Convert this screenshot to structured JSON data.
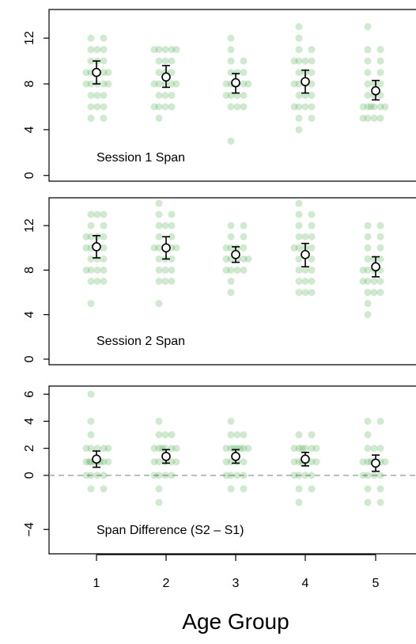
{
  "chart_data": {
    "type": "scatter",
    "xlabel": "Age Group",
    "x_ticks": [
      "1",
      "2",
      "3",
      "4",
      "5"
    ],
    "colors": {
      "points": "#2e9a2e",
      "mean_marker": "#000000",
      "zero_line": "#a6a6a6"
    },
    "panels": [
      {
        "title": "Session 1 Span",
        "ylim": [
          -0.5,
          14.5
        ],
        "y_ticks": [
          0,
          4,
          8,
          12
        ],
        "y_tick_labels": [
          "0",
          "4",
          "8",
          "12"
        ],
        "groups": [
          {
            "group": 1,
            "mean": 9.0,
            "lo": 8.0,
            "hi": 10.0,
            "values": [
              12,
              12,
              11,
              11,
              11,
              10,
              10,
              10,
              9,
              9,
              9,
              9,
              9,
              8,
              8,
              8,
              8,
              8,
              7,
              7,
              7,
              6,
              6,
              6,
              5,
              5
            ]
          },
          {
            "group": 2,
            "mean": 8.6,
            "lo": 7.7,
            "hi": 9.6,
            "values": [
              11,
              11,
              11,
              11,
              11,
              10,
              10,
              10,
              9,
              9,
              9,
              8,
              8,
              8,
              8,
              8,
              7,
              7,
              7,
              6,
              6,
              6,
              6,
              5
            ]
          },
          {
            "group": 3,
            "mean": 8.1,
            "lo": 7.2,
            "hi": 8.9,
            "values": [
              12,
              11,
              10,
              10,
              9,
              9,
              9,
              8,
              8,
              8,
              8,
              8,
              8,
              7,
              7,
              7,
              7,
              6,
              6,
              6,
              3
            ]
          },
          {
            "group": 4,
            "mean": 8.2,
            "lo": 7.2,
            "hi": 9.2,
            "values": [
              13,
              12,
              11,
              11,
              10,
              10,
              10,
              10,
              9,
              9,
              9,
              8,
              8,
              8,
              8,
              7,
              7,
              7,
              6,
              6,
              6,
              6,
              5,
              5,
              4
            ]
          },
          {
            "group": 5,
            "mean": 7.4,
            "lo": 6.6,
            "hi": 8.3,
            "values": [
              13,
              11,
              11,
              10,
              10,
              9,
              9,
              8,
              8,
              8,
              7,
              7,
              7,
              6,
              6,
              6,
              6,
              6,
              6,
              5,
              5,
              5,
              5
            ]
          }
        ]
      },
      {
        "title": "Session 2 Span",
        "ylim": [
          -0.5,
          14.5
        ],
        "y_ticks": [
          0,
          4,
          8,
          12
        ],
        "y_tick_labels": [
          "0",
          "4",
          "8",
          "12"
        ],
        "groups": [
          {
            "group": 1,
            "mean": 10.1,
            "lo": 9.1,
            "hi": 11.1,
            "values": [
              13,
              13,
              13,
              12,
              12,
              11,
              11,
              11,
              11,
              10,
              10,
              10,
              10,
              9,
              9,
              9,
              8,
              8,
              8,
              8,
              7,
              7,
              7,
              5
            ]
          },
          {
            "group": 2,
            "mean": 10.0,
            "lo": 9.0,
            "hi": 11.0,
            "values": [
              14,
              13,
              13,
              12,
              12,
              12,
              11,
              11,
              10,
              10,
              10,
              10,
              10,
              9,
              9,
              9,
              8,
              8,
              8,
              7,
              7,
              7,
              5
            ]
          },
          {
            "group": 3,
            "mean": 9.4,
            "lo": 8.7,
            "hi": 10.1,
            "values": [
              12,
              12,
              11,
              11,
              10,
              10,
              10,
              10,
              9,
              9,
              9,
              9,
              9,
              8,
              8,
              8,
              8,
              7,
              6
            ]
          },
          {
            "group": 4,
            "mean": 9.4,
            "lo": 8.3,
            "hi": 10.4,
            "values": [
              14,
              13,
              13,
              12,
              12,
              11,
              11,
              11,
              10,
              10,
              10,
              10,
              9,
              9,
              8,
              8,
              8,
              7,
              7,
              7,
              6,
              6,
              6
            ]
          },
          {
            "group": 5,
            "mean": 8.3,
            "lo": 7.4,
            "hi": 9.2,
            "values": [
              12,
              12,
              11,
              11,
              10,
              10,
              9,
              9,
              9,
              8,
              8,
              8,
              8,
              7,
              7,
              7,
              7,
              6,
              6,
              6,
              5,
              4
            ]
          }
        ]
      },
      {
        "title": "Span Difference (S2 – S1)",
        "ylim": [
          -5.8,
          6.6
        ],
        "y_ticks": [
          -4,
          0,
          2,
          4,
          6
        ],
        "y_tick_labels": [
          "−4",
          "0",
          "2",
          "4",
          "6"
        ],
        "zero_line": true,
        "groups": [
          {
            "group": 1,
            "mean": 1.2,
            "lo": 0.6,
            "hi": 1.8,
            "values": [
              6,
              4,
              3,
              2,
              2,
              2,
              2,
              2,
              1,
              1,
              1,
              1,
              1,
              1,
              1,
              1,
              0,
              0,
              0,
              0,
              -1,
              -1
            ]
          },
          {
            "group": 2,
            "mean": 1.4,
            "lo": 0.9,
            "hi": 1.9,
            "values": [
              4,
              3,
              3,
              3,
              2,
              2,
              2,
              2,
              2,
              2,
              1,
              1,
              1,
              1,
              1,
              0,
              0,
              0,
              0,
              -1,
              -2
            ]
          },
          {
            "group": 3,
            "mean": 1.4,
            "lo": 0.9,
            "hi": 1.9,
            "values": [
              4,
              3,
              3,
              3,
              2,
              2,
              2,
              2,
              2,
              2,
              2,
              1,
              1,
              1,
              1,
              0,
              0,
              0,
              0,
              -1,
              -1
            ]
          },
          {
            "group": 4,
            "mean": 1.2,
            "lo": 0.7,
            "hi": 1.7,
            "values": [
              3,
              3,
              2,
              2,
              2,
              2,
              2,
              2,
              1,
              1,
              1,
              1,
              1,
              1,
              0,
              0,
              0,
              0,
              -1,
              -1,
              -2
            ]
          },
          {
            "group": 5,
            "mean": 0.9,
            "lo": 0.3,
            "hi": 1.5,
            "values": [
              4,
              4,
              3,
              2,
              2,
              2,
              1,
              1,
              1,
              1,
              1,
              1,
              0,
              0,
              0,
              0,
              -1,
              -1,
              -2,
              -2
            ]
          }
        ]
      }
    ]
  }
}
